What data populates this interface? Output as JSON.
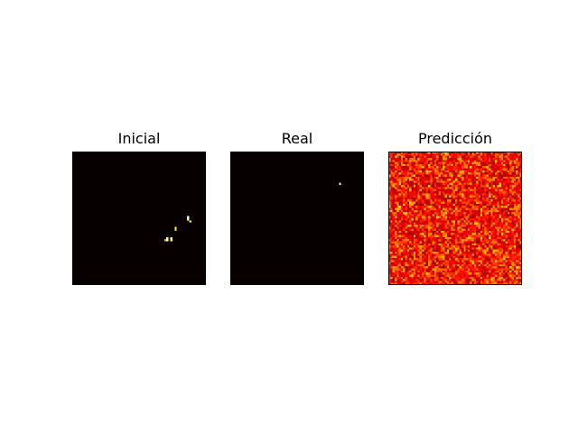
{
  "chart_data": [
    {
      "type": "heatmap",
      "title": "Inicial",
      "grid_size": [
        64,
        64
      ],
      "colormap": "hot",
      "background": "#060000",
      "axes_visible": false,
      "hotspots": [
        {
          "row": 31,
          "col": 55,
          "value": 1.0
        },
        {
          "row": 32,
          "col": 55,
          "value": 0.9
        },
        {
          "row": 33,
          "col": 56,
          "value": 0.8
        },
        {
          "row": 36,
          "col": 49,
          "value": 0.85
        },
        {
          "row": 37,
          "col": 49,
          "value": 0.7
        },
        {
          "row": 41,
          "col": 45,
          "value": 0.9
        },
        {
          "row": 42,
          "col": 45,
          "value": 1.0
        },
        {
          "row": 42,
          "col": 44,
          "value": 0.6
        },
        {
          "row": 41,
          "col": 47,
          "value": 0.95
        },
        {
          "row": 42,
          "col": 47,
          "value": 0.8
        }
      ]
    },
    {
      "type": "heatmap",
      "title": "Real",
      "grid_size": [
        64,
        64
      ],
      "colormap": "hot",
      "background": "#060000",
      "axes_visible": false,
      "hotspots": [
        {
          "row": 15,
          "col": 52,
          "value": 0.85
        }
      ]
    },
    {
      "type": "heatmap",
      "title": "Predicción",
      "grid_size": [
        64,
        64
      ],
      "colormap": "hot",
      "axes_visible": false,
      "value_range": [
        0.2,
        0.72
      ],
      "pattern": "noise"
    }
  ]
}
